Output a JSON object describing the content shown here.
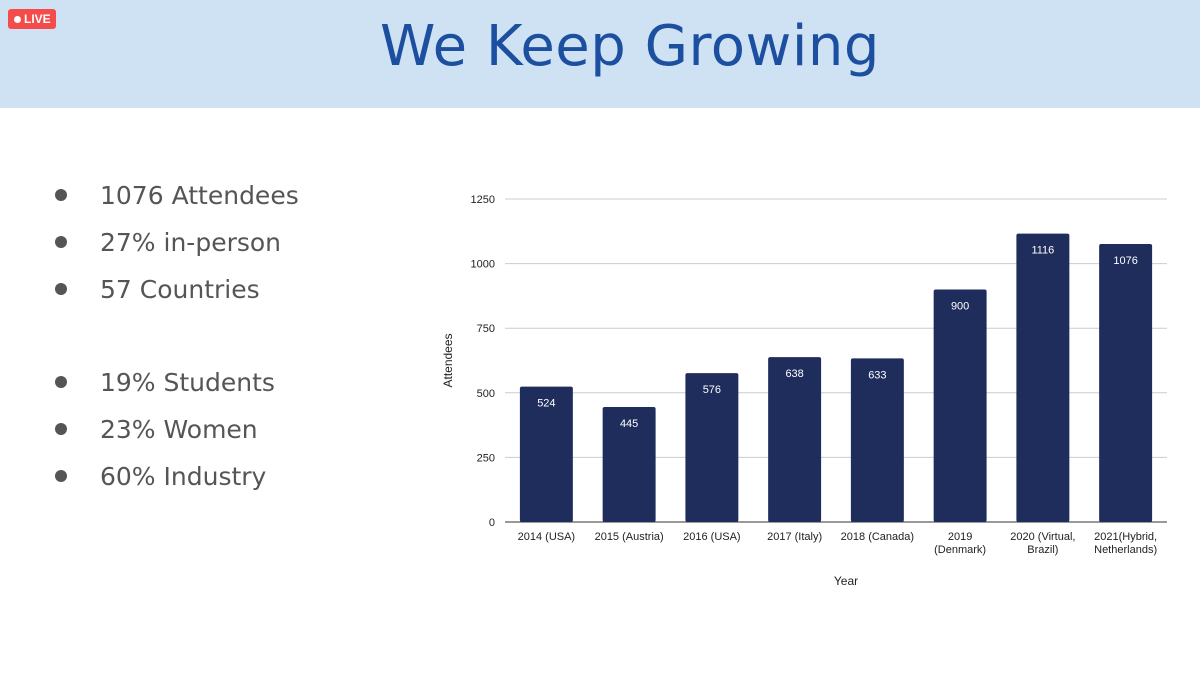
{
  "badge": {
    "label": "LIVE"
  },
  "header": {
    "title": "We Keep Growing"
  },
  "bullets": {
    "group1": [
      "1076 Attendees",
      "27% in-person",
      "57 Countries"
    ],
    "group2": [
      "19% Students",
      "23% Women",
      "60% Industry"
    ]
  },
  "colors": {
    "header_bg": "#cfe2f3",
    "title": "#1c4fa0",
    "bar": "#1f2d5c",
    "badge": "#f44b4b"
  },
  "chart_data": {
    "type": "bar",
    "categories": [
      [
        "2014 (USA)"
      ],
      [
        "2015 (Austria)"
      ],
      [
        "2016 (USA)"
      ],
      [
        "2017 (Italy)"
      ],
      [
        "2018 (Canada)"
      ],
      [
        "2019",
        "(Denmark)"
      ],
      [
        "2020 (Virtual,",
        "Brazil)"
      ],
      [
        "2021(Hybrid,",
        "Netherlands)"
      ]
    ],
    "values": [
      524,
      445,
      576,
      638,
      633,
      900,
      1116,
      1076
    ],
    "xlabel": "Year",
    "ylabel": "Attendees",
    "ylim": [
      0,
      1250
    ],
    "yticks": [
      0,
      250,
      500,
      750,
      1000,
      1250
    ],
    "grid": true,
    "data_labels": true
  }
}
